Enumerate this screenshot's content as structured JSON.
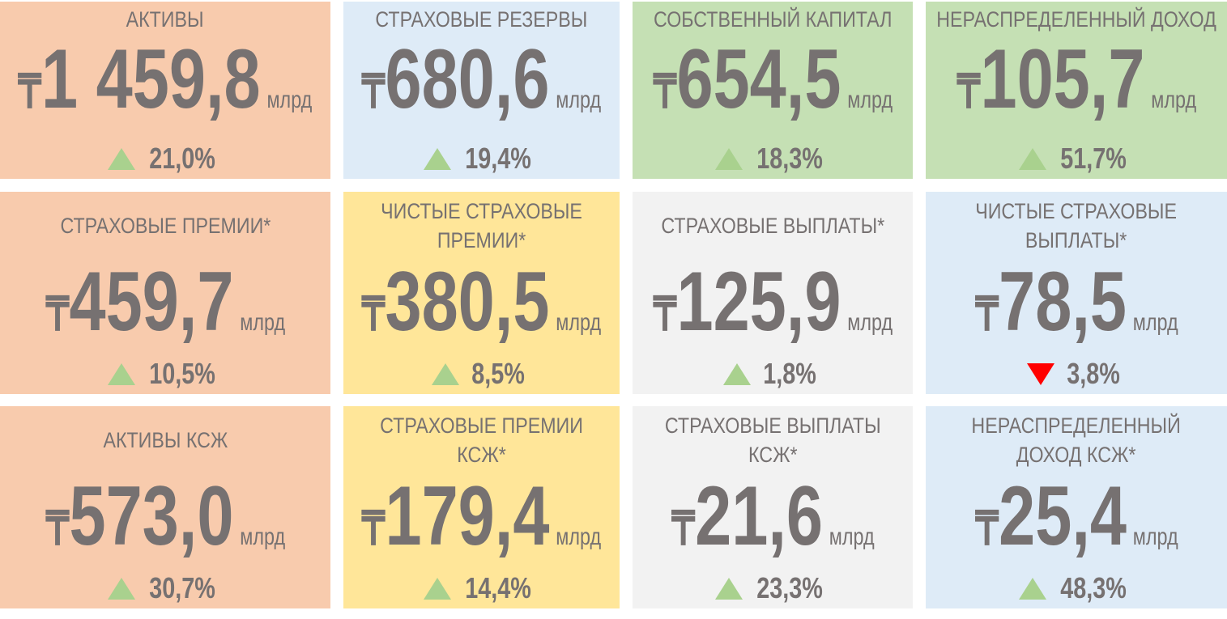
{
  "currency": "₸",
  "unit": "млрд",
  "cards": [
    {
      "title": "АКТИВЫ",
      "value": "1 459,8",
      "change": "21,0%",
      "trend": "up",
      "color": "#f8cbad"
    },
    {
      "title": "СТРАХОВЫЕ РЕЗЕРВЫ",
      "value": "680,6",
      "change": "19,4%",
      "trend": "up",
      "color": "#deebf7"
    },
    {
      "title": "СОБСТВЕННЫЙ КАПИТАЛ",
      "value": "654,5",
      "change": "18,3%",
      "trend": "up",
      "color": "#c5e0b4"
    },
    {
      "title": "НЕРАСПРЕДЕЛЕННЫЙ ДОХОД",
      "value": "105,7",
      "change": "51,7%",
      "trend": "up",
      "color": "#c5e0b4"
    },
    {
      "title": "СТРАХОВЫЕ ПРЕМИИ*",
      "value": "459,7",
      "change": "10,5%",
      "trend": "up",
      "color": "#f8cbad"
    },
    {
      "title": "ЧИСТЫЕ СТРАХОВЫЕ ПРЕМИИ*",
      "value": "380,5",
      "change": "8,5%",
      "trend": "up",
      "color": "#ffe699"
    },
    {
      "title": "СТРАХОВЫЕ ВЫПЛАТЫ*",
      "value": "125,9",
      "change": "1,8%",
      "trend": "up",
      "color": "#f2f2f2"
    },
    {
      "title": "ЧИСТЫЕ СТРАХОВЫЕ ВЫПЛАТЫ*",
      "value": "78,5",
      "change": "3,8%",
      "trend": "down",
      "color": "#deebf7"
    },
    {
      "title": "АКТИВЫ КСЖ",
      "value": "573,0",
      "change": "30,7%",
      "trend": "up",
      "color": "#f8cbad"
    },
    {
      "title": "СТРАХОВЫЕ ПРЕМИИ КСЖ*",
      "value": "179,4",
      "change": "14,4%",
      "trend": "up",
      "color": "#ffe699"
    },
    {
      "title": "СТРАХОВЫЕ ВЫПЛАТЫ КСЖ*",
      "value": "21,6",
      "change": "23,3%",
      "trend": "up",
      "color": "#f2f2f2"
    },
    {
      "title": "НЕРАСПРЕДЕЛЕННЫЙ ДОХОД КСЖ*",
      "value": "25,4",
      "change": "48,3%",
      "trend": "up",
      "color": "#deebf7"
    }
  ]
}
